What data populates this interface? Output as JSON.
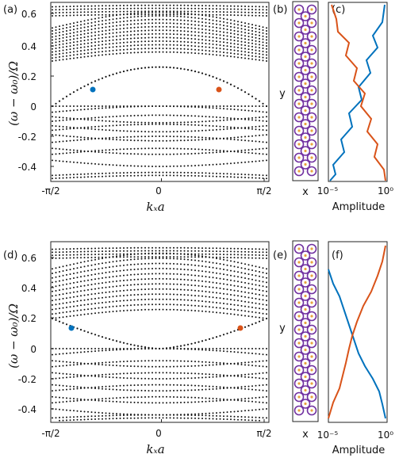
{
  "chart_data": [
    {
      "type": "scatter",
      "panel_label": "(a)",
      "ylabel": "(ω − ω₀)/Ω",
      "xlabel": "kₓa",
      "x_ticks": [
        "-π/2",
        "0",
        "π/2"
      ],
      "y_ticks": [
        "-0.4",
        "-0.2",
        "0",
        "0.2",
        "0.4",
        "0.6"
      ],
      "xlim": [
        -1.5708,
        1.5708
      ],
      "ylim": [
        -0.5,
        0.67
      ],
      "markers": [
        {
          "name": "",
          "x": -0.6,
          "y": 0.115,
          "color": "#0072bd"
        },
        {
          "name": "",
          "x": 0.6,
          "y": 0.115,
          "color": "#d95319"
        }
      ]
    },
    {
      "type": "diagram",
      "panel_label": "(b)",
      "xlabel": "x",
      "ylabel": "y",
      "ring_color": "#7030a0",
      "dot_color": "#e8a33d"
    },
    {
      "type": "line",
      "panel_label": "(c)",
      "xlabel": "Amplitude",
      "x_scale": "log",
      "x_ticks": [
        "10⁻⁵",
        "10⁰"
      ],
      "series": [
        {
          "name": "",
          "color": "#0072bd"
        },
        {
          "name": "",
          "color": "#d95319"
        }
      ]
    },
    {
      "type": "scatter",
      "panel_label": "(d)",
      "ylabel": "(ω − ω₀)/Ω",
      "xlabel": "kₓa",
      "x_ticks": [
        "-π/2",
        "0",
        "π/2"
      ],
      "y_ticks": [
        "-0.4",
        "-0.2",
        "0",
        "0.2",
        "0.4",
        "0.6"
      ],
      "xlim": [
        -1.5708,
        1.5708
      ],
      "ylim": [
        -0.5,
        0.67
      ],
      "markers": [
        {
          "name": "",
          "x": -1.1,
          "y": 0.13,
          "color": "#0072bd"
        },
        {
          "name": "",
          "x": 1.1,
          "y": 0.13,
          "color": "#d95319"
        }
      ]
    },
    {
      "type": "diagram",
      "panel_label": "(e)",
      "xlabel": "x",
      "ylabel": "y",
      "ring_color": "#7030a0",
      "dot_color": "#e8a33d"
    },
    {
      "type": "line",
      "panel_label": "(f)",
      "xlabel": "Amplitude",
      "x_scale": "log",
      "x_ticks": [
        "10⁻⁵",
        "10⁰"
      ],
      "series": [
        {
          "name": "",
          "color": "#0072bd"
        },
        {
          "name": "",
          "color": "#d95319"
        }
      ]
    }
  ]
}
